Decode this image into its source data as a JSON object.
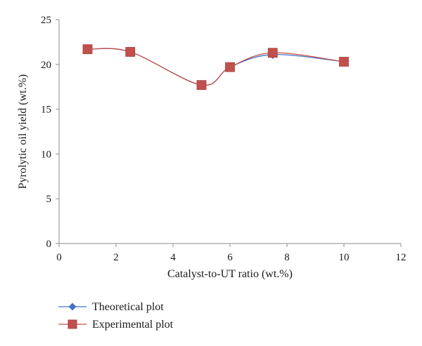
{
  "chart_data": {
    "type": "line",
    "title": "",
    "xlabel": "Catalyst-to-UT ratio (wt.%)",
    "ylabel": "Pyrolytic oil yield (wt.%)",
    "xlim": [
      0,
      12
    ],
    "ylim": [
      0,
      25
    ],
    "xticks": [
      "0",
      "2",
      "4",
      "6",
      "8",
      "10",
      "12"
    ],
    "yticks": [
      "0",
      "5",
      "10",
      "15",
      "20",
      "25"
    ],
    "grid": false,
    "legend_position": "bottom-left",
    "smooth": true,
    "series": [
      {
        "name": "Theoretical plot",
        "marker": "diamond",
        "color": "#4472c4",
        "x": [
          1,
          2.5,
          5,
          6,
          7.5,
          10
        ],
        "y": [
          21.7,
          21.4,
          17.7,
          19.7,
          21.1,
          20.3
        ]
      },
      {
        "name": "Experimental plot",
        "marker": "square",
        "color": "#c0504d",
        "x": [
          1,
          2.5,
          5,
          6,
          7.5,
          10
        ],
        "y": [
          21.7,
          21.4,
          17.7,
          19.7,
          21.3,
          20.3
        ]
      }
    ]
  }
}
